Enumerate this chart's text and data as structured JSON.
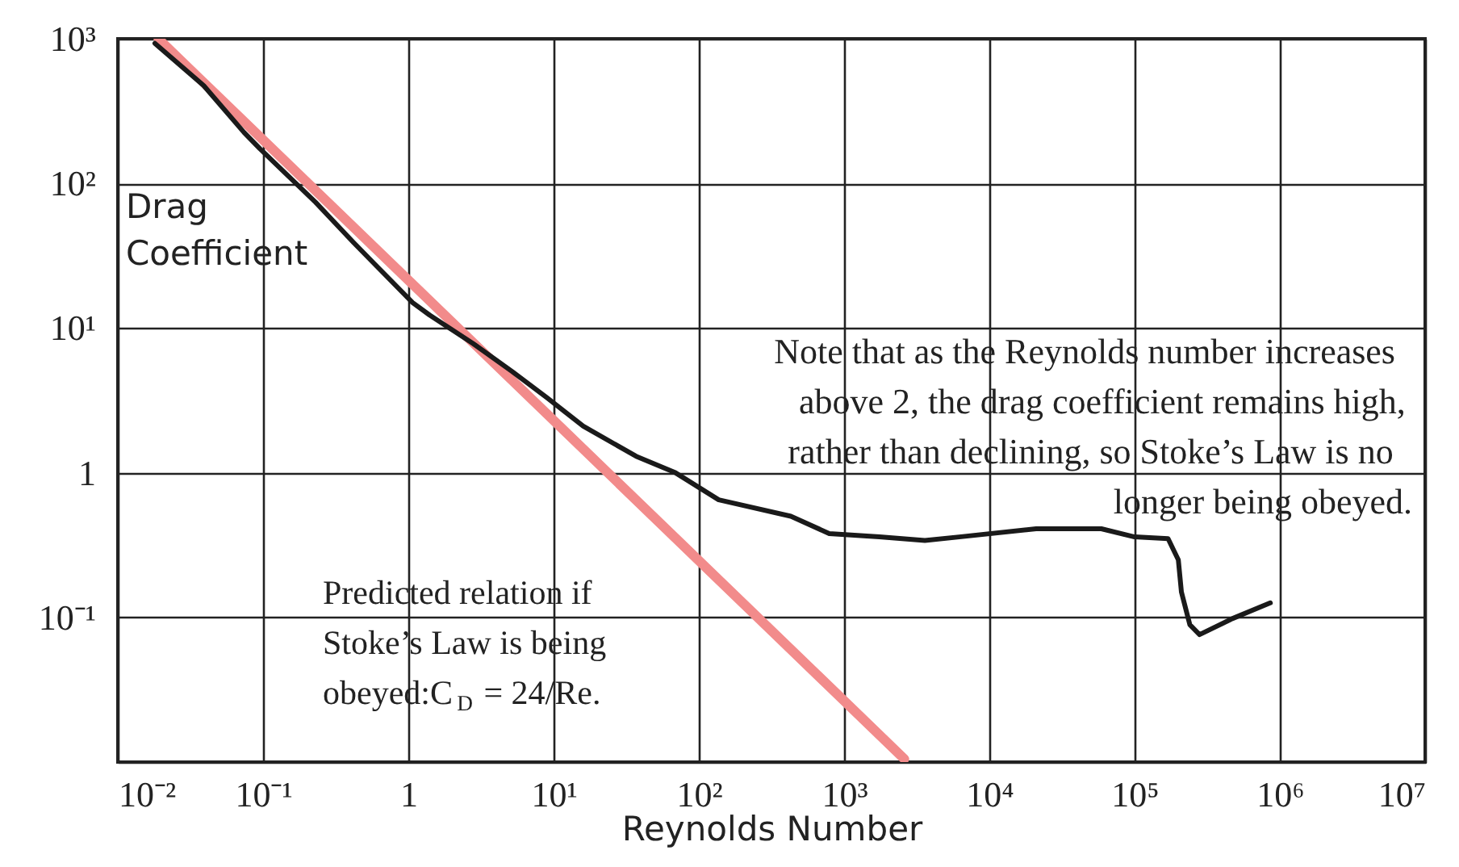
{
  "chart_data": {
    "type": "line",
    "xlabel": "Reynolds Number",
    "ylabel": "Drag Coefficient",
    "log": "xy",
    "grid": true,
    "line_style": "solid",
    "xlim": [
      0.01,
      10000000
    ],
    "ylim": [
      0.01,
      1000
    ],
    "xticks": [
      {
        "value": 0.01,
        "label": "10⁻²"
      },
      {
        "value": 0.1,
        "label": "10⁻¹"
      },
      1,
      {
        "value": 10,
        "label": "10¹"
      },
      {
        "value": 100,
        "label": "10²"
      },
      {
        "value": 1000,
        "label": "10³"
      },
      {
        "value": 10000,
        "label": "10⁴"
      },
      {
        "value": 100000,
        "label": "10⁵"
      },
      {
        "value": 1000000,
        "label": "10⁶"
      },
      {
        "value": 10000000,
        "label": "10⁷"
      }
    ],
    "yticks": [
      {
        "value": 0.01,
        "label": null
      },
      {
        "value": 0.1,
        "label": "10⁻¹"
      },
      1,
      {
        "value": 10,
        "label": "10¹"
      },
      {
        "value": 100,
        "label": "10²"
      },
      {
        "value": 1000,
        "label": "10³"
      }
    ],
    "series": [
      {
        "color": "#f28b8b",
        "x": [
          0.019,
          2600
        ],
        "values": [
          1000,
          0.0105
        ]
      },
      {
        "color": "#1a1a1a",
        "x": [
          0.018,
          0.039,
          0.074,
          0.095,
          0.23,
          0.42,
          0.58,
          1.07,
          1.4,
          2.8,
          5.2,
          9,
          16,
          37,
          69,
          137,
          430,
          790,
          1750,
          3600,
          6200,
          21000,
          59000,
          100000,
          170000,
          200000,
          210000,
          240000,
          280000,
          470000,
          860000
        ],
        "values": [
          930,
          475,
          225,
          174,
          74,
          39,
          28,
          15,
          12.3,
          7.8,
          5.0,
          3.3,
          2.1,
          1.3,
          1.0,
          0.65,
          0.5,
          0.38,
          0.36,
          0.34,
          0.36,
          0.41,
          0.41,
          0.36,
          0.35,
          0.25,
          0.15,
          0.089,
          0.076,
          0.098,
          0.126
        ]
      }
    ],
    "annotations": [
      "Note that as the Reynolds number increases above 2, the drag coefficient remains high, rather than declining, so Stoke’s Law is no longer being obeyed.",
      "Predicted relation if Stoke’s Law is being obeyed:C$_{D}$ = 24/Re."
    ]
  }
}
